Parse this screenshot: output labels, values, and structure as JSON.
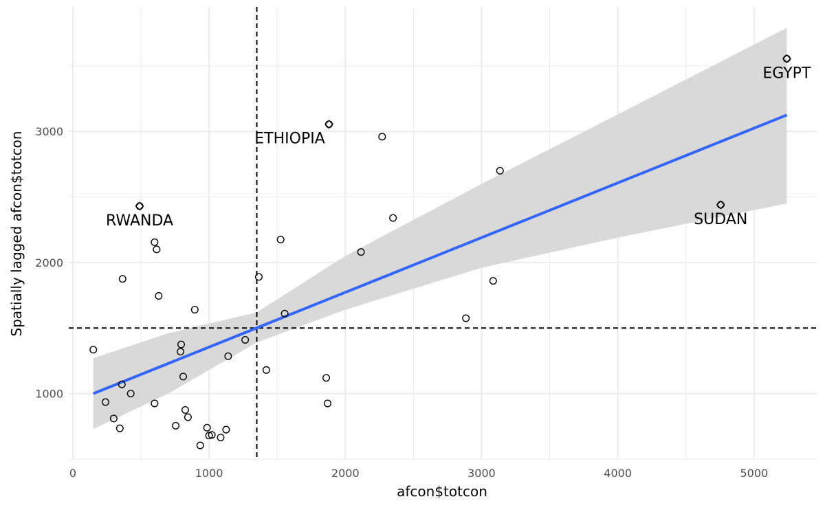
{
  "chart_data": {
    "type": "scatter",
    "xlabel": "afcon$totcon",
    "ylabel": "Spatially lagged afcon$totcon",
    "xlim": [
      -30,
      5460
    ],
    "ylim": [
      500,
      3950
    ],
    "x_ticks": [
      0,
      1000,
      2000,
      3000,
      4000,
      5000
    ],
    "y_ticks": [
      1000,
      2000,
      3000
    ],
    "x_tick_labels": [
      "0",
      "1000",
      "2000",
      "3000",
      "4000",
      "5000"
    ],
    "y_tick_labels": [
      "1000",
      "2000",
      "3000"
    ],
    "grid": true,
    "mean_lines": {
      "x": 1350,
      "y": 1500
    },
    "regression_line": {
      "x0": 150,
      "y0": 1000,
      "x1": 5240,
      "y1": 3125
    },
    "confidence_band": [
      {
        "x": 150,
        "lo": 730,
        "hi": 1270
      },
      {
        "x": 700,
        "lo": 1000,
        "hi": 1460
      },
      {
        "x": 1350,
        "lo": 1390,
        "hi": 1620
      },
      {
        "x": 2000,
        "lo": 1640,
        "hi": 2050
      },
      {
        "x": 3000,
        "lo": 1960,
        "hi": 2600
      },
      {
        "x": 4000,
        "lo": 2190,
        "hi": 3130
      },
      {
        "x": 5240,
        "lo": 2450,
        "hi": 3790
      }
    ],
    "points": [
      {
        "x": 150,
        "y": 1335
      },
      {
        "x": 240,
        "y": 935
      },
      {
        "x": 300,
        "y": 810
      },
      {
        "x": 345,
        "y": 735
      },
      {
        "x": 360,
        "y": 1070
      },
      {
        "x": 365,
        "y": 1875
      },
      {
        "x": 425,
        "y": 1000
      },
      {
        "x": 600,
        "y": 2155
      },
      {
        "x": 600,
        "y": 925
      },
      {
        "x": 615,
        "y": 2100
      },
      {
        "x": 630,
        "y": 1745
      },
      {
        "x": 755,
        "y": 755
      },
      {
        "x": 790,
        "y": 1320
      },
      {
        "x": 795,
        "y": 1375
      },
      {
        "x": 810,
        "y": 1130
      },
      {
        "x": 825,
        "y": 875
      },
      {
        "x": 845,
        "y": 820
      },
      {
        "x": 895,
        "y": 1640
      },
      {
        "x": 935,
        "y": 605
      },
      {
        "x": 985,
        "y": 740
      },
      {
        "x": 1000,
        "y": 680
      },
      {
        "x": 1020,
        "y": 685
      },
      {
        "x": 1085,
        "y": 665
      },
      {
        "x": 1125,
        "y": 725
      },
      {
        "x": 1140,
        "y": 1285
      },
      {
        "x": 1265,
        "y": 1410
      },
      {
        "x": 1365,
        "y": 1890
      },
      {
        "x": 1420,
        "y": 1180
      },
      {
        "x": 1525,
        "y": 2175
      },
      {
        "x": 1555,
        "y": 1610
      },
      {
        "x": 1860,
        "y": 1120
      },
      {
        "x": 1870,
        "y": 925
      },
      {
        "x": 2115,
        "y": 2080
      },
      {
        "x": 2270,
        "y": 2960
      },
      {
        "x": 2350,
        "y": 2340
      },
      {
        "x": 2885,
        "y": 1575
      },
      {
        "x": 3085,
        "y": 1860
      },
      {
        "x": 3135,
        "y": 2700
      }
    ],
    "influential_points": [
      {
        "x": 490,
        "y": 2430,
        "label": "RWANDA"
      },
      {
        "x": 1880,
        "y": 3055,
        "label": "ETHIOPIA"
      },
      {
        "x": 4755,
        "y": 2440,
        "label": "SUDAN"
      },
      {
        "x": 5240,
        "y": 3555,
        "label": "EGYPT"
      }
    ],
    "colors": {
      "regression": "#3366ff",
      "band": "#d9d9d9",
      "grid": "#ebebeb",
      "points": "#000000"
    }
  }
}
